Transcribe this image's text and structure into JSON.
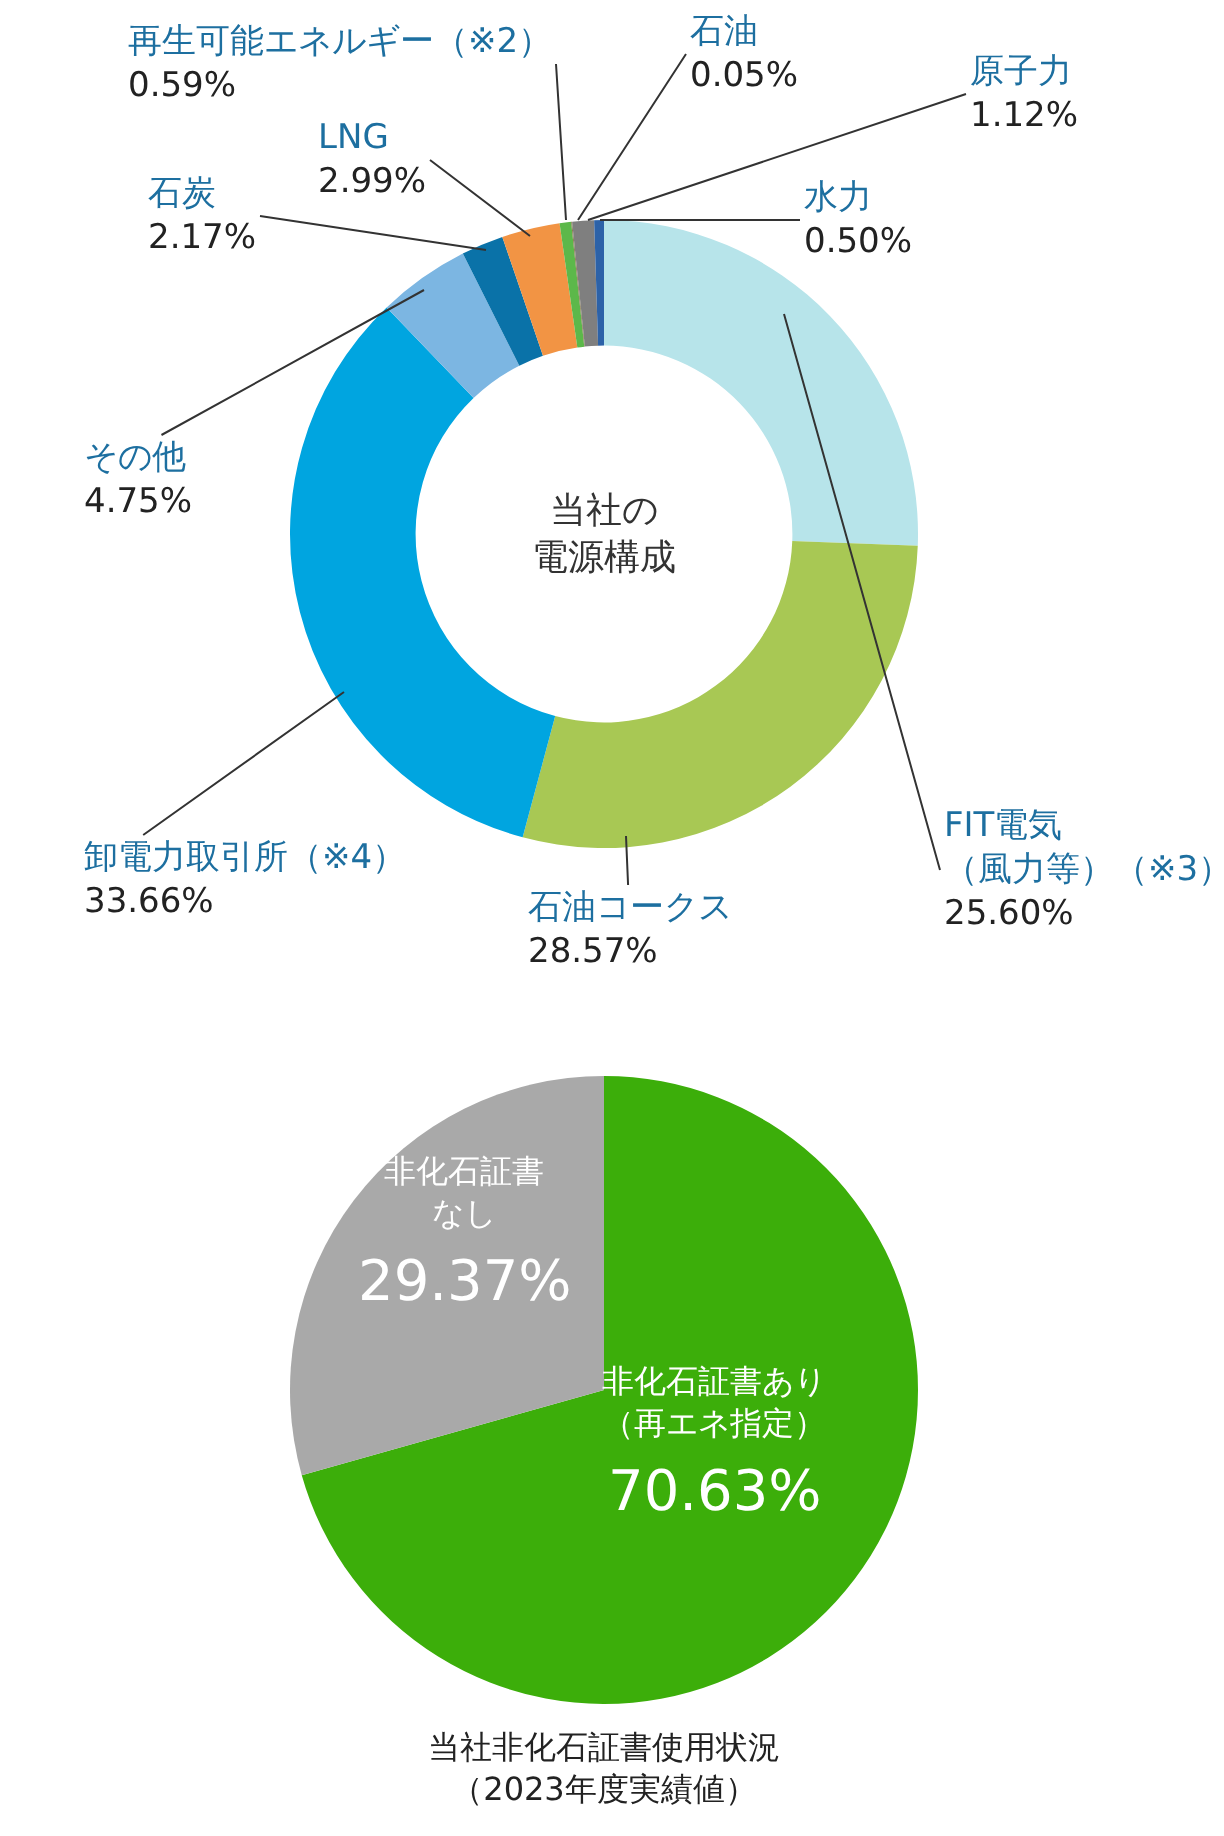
{
  "chart_data": [
    {
      "type": "donut",
      "title": "当社の電源構成",
      "categories": [
        "FIT電気（風力等）（※3）",
        "石油コークス",
        "卸電力取引所（※4）",
        "その他",
        "石炭",
        "LNG",
        "再生可能エネルギー（※2）",
        "石油",
        "原子力",
        "水力"
      ],
      "values": [
        25.6,
        28.57,
        33.66,
        4.75,
        2.17,
        2.99,
        0.59,
        0.05,
        1.12,
        0.5
      ],
      "value_labels": [
        "25.60%",
        "28.57%",
        "33.66%",
        "4.75%",
        "2.17%",
        "2.99%",
        "0.59%",
        "0.05%",
        "1.12%",
        "0.50%"
      ],
      "colors": [
        "#b7e4ea",
        "#a8c854",
        "#00a5e0",
        "#7cb6e2",
        "#0a72a8",
        "#f29444",
        "#5cb84a",
        "#8a7a50",
        "#7f7f7f",
        "#2c62a8"
      ]
    },
    {
      "type": "pie",
      "title": "当社非化石証書使用状況（2023年度実績値）",
      "categories": [
        "非化石証書あり（再エネ指定）",
        "非化石証書なし"
      ],
      "values": [
        70.63,
        29.37
      ],
      "value_labels": [
        "70.63%",
        "29.37%"
      ],
      "colors": [
        "#3cae0a",
        "#a9a9a9"
      ]
    }
  ]
}
